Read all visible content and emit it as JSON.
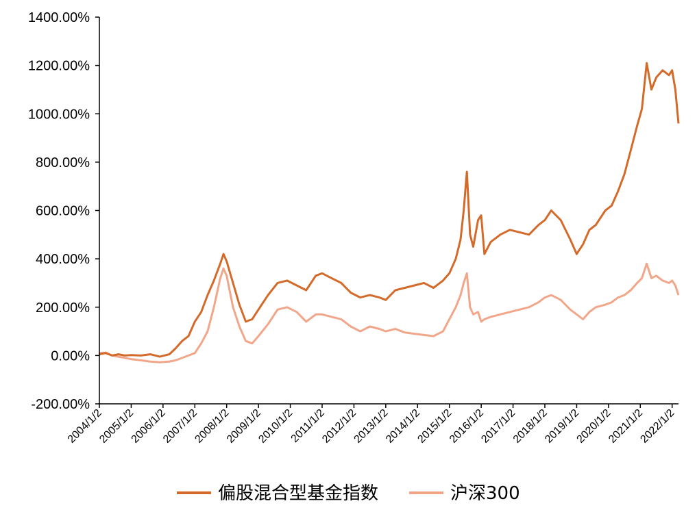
{
  "chart_data": {
    "type": "line",
    "title": "",
    "xlabel": "",
    "ylabel": "",
    "ylim": [
      -200,
      1400
    ],
    "y_ticks": [
      -200,
      0,
      200,
      400,
      600,
      800,
      1000,
      1200,
      1400
    ],
    "y_tick_labels": [
      "-200.00%",
      "0.00%",
      "200.00%",
      "400.00%",
      "600.00%",
      "800.00%",
      "1000.00%",
      "1200.00%",
      "1400.00%"
    ],
    "x_range": [
      2004.0,
      2022.2
    ],
    "x_ticks": [
      2004,
      2005,
      2006,
      2007,
      2008,
      2009,
      2010,
      2011,
      2012,
      2013,
      2014,
      2015,
      2016,
      2017,
      2018,
      2019,
      2020,
      2021,
      2022
    ],
    "x_tick_labels": [
      "2004/1/2",
      "2005/1/2",
      "2006/1/2",
      "2007/1/2",
      "2008/1/2",
      "2009/1/2",
      "2010/1/2",
      "2011/1/2",
      "2012/1/2",
      "2013/1/2",
      "2014/1/2",
      "2015/1/2",
      "2016/1/2",
      "2017/1/2",
      "2018/1/2",
      "2019/1/2",
      "2020/1/2",
      "2021/1/2",
      "2022/1/2"
    ],
    "grid": false,
    "legend_position": "bottom",
    "series": [
      {
        "name": "偏股混合型基金指数",
        "color": "#D46A2A",
        "x": [
          2004.0,
          2004.2,
          2004.4,
          2004.6,
          2004.8,
          2005.0,
          2005.3,
          2005.6,
          2005.9,
          2006.2,
          2006.4,
          2006.6,
          2006.8,
          2007.0,
          2007.2,
          2007.4,
          2007.6,
          2007.8,
          2007.9,
          2008.0,
          2008.2,
          2008.4,
          2008.6,
          2008.8,
          2009.0,
          2009.3,
          2009.6,
          2009.9,
          2010.2,
          2010.5,
          2010.8,
          2011.0,
          2011.3,
          2011.6,
          2011.9,
          2012.2,
          2012.5,
          2012.8,
          2013.0,
          2013.3,
          2013.6,
          2013.9,
          2014.2,
          2014.5,
          2014.8,
          2015.0,
          2015.2,
          2015.35,
          2015.45,
          2015.55,
          2015.65,
          2015.75,
          2015.9,
          2016.0,
          2016.1,
          2016.3,
          2016.6,
          2016.9,
          2017.2,
          2017.5,
          2017.8,
          2018.0,
          2018.2,
          2018.5,
          2018.8,
          2019.0,
          2019.2,
          2019.4,
          2019.6,
          2019.9,
          2020.1,
          2020.3,
          2020.5,
          2020.7,
          2020.9,
          2021.05,
          2021.2,
          2021.35,
          2021.5,
          2021.7,
          2021.9,
          2022.0,
          2022.1,
          2022.2
        ],
        "values": [
          5,
          10,
          0,
          5,
          0,
          2,
          0,
          5,
          -5,
          5,
          30,
          60,
          80,
          140,
          180,
          250,
          310,
          380,
          420,
          390,
          300,
          210,
          140,
          150,
          190,
          250,
          300,
          310,
          290,
          270,
          330,
          340,
          320,
          300,
          260,
          240,
          250,
          240,
          230,
          270,
          280,
          290,
          300,
          280,
          310,
          340,
          400,
          480,
          600,
          760,
          500,
          450,
          560,
          580,
          420,
          470,
          500,
          520,
          510,
          500,
          540,
          560,
          600,
          560,
          480,
          420,
          460,
          520,
          540,
          600,
          620,
          680,
          750,
          850,
          950,
          1020,
          1210,
          1100,
          1150,
          1180,
          1160,
          1180,
          1100,
          960
        ]
      },
      {
        "name": "沪深300",
        "color": "#F2A689",
        "x": [
          2004.0,
          2004.2,
          2004.4,
          2004.6,
          2004.8,
          2005.0,
          2005.3,
          2005.6,
          2005.9,
          2006.2,
          2006.4,
          2006.6,
          2006.8,
          2007.0,
          2007.2,
          2007.4,
          2007.6,
          2007.8,
          2007.9,
          2008.0,
          2008.2,
          2008.4,
          2008.6,
          2008.8,
          2009.0,
          2009.3,
          2009.6,
          2009.9,
          2010.2,
          2010.5,
          2010.8,
          2011.0,
          2011.3,
          2011.6,
          2011.9,
          2012.2,
          2012.5,
          2012.8,
          2013.0,
          2013.3,
          2013.6,
          2013.9,
          2014.2,
          2014.5,
          2014.8,
          2015.0,
          2015.2,
          2015.35,
          2015.45,
          2015.55,
          2015.65,
          2015.75,
          2015.9,
          2016.0,
          2016.1,
          2016.3,
          2016.6,
          2016.9,
          2017.2,
          2017.5,
          2017.8,
          2018.0,
          2018.2,
          2018.5,
          2018.8,
          2019.0,
          2019.2,
          2019.4,
          2019.6,
          2019.9,
          2020.1,
          2020.3,
          2020.5,
          2020.7,
          2020.9,
          2021.05,
          2021.2,
          2021.35,
          2021.5,
          2021.7,
          2021.9,
          2022.0,
          2022.1,
          2022.2
        ],
        "values": [
          10,
          12,
          0,
          -5,
          -10,
          -15,
          -20,
          -25,
          -28,
          -25,
          -20,
          -10,
          0,
          10,
          50,
          100,
          200,
          320,
          360,
          330,
          200,
          120,
          60,
          50,
          80,
          130,
          190,
          200,
          180,
          140,
          170,
          170,
          160,
          150,
          120,
          100,
          120,
          110,
          100,
          110,
          95,
          90,
          85,
          80,
          100,
          150,
          200,
          250,
          300,
          340,
          200,
          170,
          180,
          140,
          150,
          160,
          170,
          180,
          190,
          200,
          220,
          240,
          250,
          230,
          190,
          170,
          150,
          180,
          200,
          210,
          220,
          240,
          250,
          270,
          300,
          320,
          380,
          320,
          330,
          310,
          300,
          310,
          290,
          250
        ]
      }
    ]
  },
  "legend": {
    "items": [
      {
        "label": "偏股混合型基金指数",
        "color": "#D46A2A"
      },
      {
        "label": "沪深300",
        "color": "#F2A689"
      }
    ]
  }
}
